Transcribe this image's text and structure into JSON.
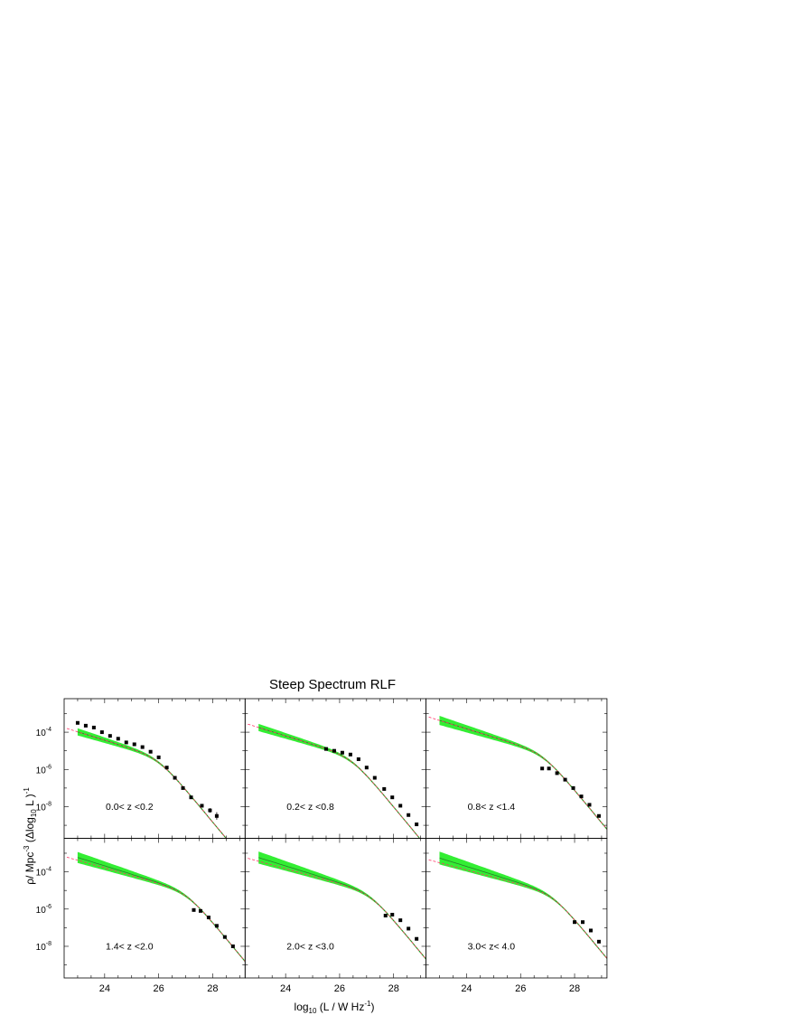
{
  "figure": {
    "title": "Steep Spectrum RLF",
    "xlabel_main": "log",
    "xlabel_sub": "10",
    "xlabel_rest": " (L / W Hz",
    "xlabel_sup": "-1",
    "xlabel_close": ")",
    "ylabel_a": "ρ/ Mpc",
    "ylabel_sup": "-3",
    "ylabel_b": " (Δlog",
    "ylabel_sub": "10",
    "ylabel_c": " L )",
    "ylabel_sup2": "-1"
  },
  "colors": {
    "band": "#33ee33",
    "model_line": "#2a7a2a",
    "dashed": "#ff3366",
    "points": "#000000"
  },
  "chart_data": {
    "type": "scatter",
    "layout": "2x3 grid, shared axes",
    "xlim": [
      22.5,
      29.2
    ],
    "ylim_log10": [
      -9.7,
      -2.2
    ],
    "y_scale": "log",
    "xticks": [
      24,
      26,
      28
    ],
    "yticks": [
      {
        "exp": -4,
        "label": "10",
        "sup": "-4"
      },
      {
        "exp": -6,
        "label": "10",
        "sup": "-6"
      },
      {
        "exp": -8,
        "label": "10",
        "sup": "-8"
      }
    ],
    "panels": [
      {
        "label": "0.0< z <0.2",
        "model": {
          "Lstar": 26.0,
          "lognorm": -5.33,
          "alpha": 0.45,
          "beta": 1.75,
          "bandwidth": 0.15
        },
        "dashed_offset": 0.0,
        "points": [
          [
            23.0,
            -3.5
          ],
          [
            23.3,
            -3.65
          ],
          [
            23.6,
            -3.75
          ],
          [
            23.9,
            -4.0
          ],
          [
            24.2,
            -4.2
          ],
          [
            24.5,
            -4.35
          ],
          [
            24.8,
            -4.55
          ],
          [
            25.1,
            -4.65
          ],
          [
            25.4,
            -4.8
          ],
          [
            25.7,
            -5.05
          ],
          [
            26.0,
            -5.35
          ],
          [
            26.3,
            -5.9
          ],
          [
            26.6,
            -6.45
          ],
          [
            26.9,
            -7.0
          ],
          [
            27.2,
            -7.5
          ],
          [
            27.6,
            -7.95
          ],
          [
            27.9,
            -8.2
          ],
          [
            28.15,
            -8.5
          ]
        ],
        "errors": [
          0,
          0,
          0,
          0,
          0,
          0,
          0,
          0,
          0,
          0,
          0,
          0,
          0,
          0,
          0,
          0.08,
          0.12,
          0.2
        ]
      },
      {
        "label": "0.2< z <0.8",
        "model": {
          "Lstar": 26.45,
          "lognorm": -5.3,
          "alpha": 0.45,
          "beta": 1.75,
          "bandwidth": 0.15
        },
        "dashed_offset": 0.0,
        "points": [
          [
            25.5,
            -4.9
          ],
          [
            25.8,
            -5.0
          ],
          [
            26.1,
            -5.1
          ],
          [
            26.4,
            -5.2
          ],
          [
            26.7,
            -5.45
          ],
          [
            27.0,
            -5.9
          ],
          [
            27.3,
            -6.45
          ],
          [
            27.65,
            -7.05
          ],
          [
            27.95,
            -7.5
          ],
          [
            28.25,
            -7.95
          ],
          [
            28.55,
            -8.45
          ],
          [
            28.85,
            -8.95
          ]
        ],
        "errors": []
      },
      {
        "label": "0.8< z <1.4",
        "model": {
          "Lstar": 26.85,
          "lognorm": -5.1,
          "alpha": 0.45,
          "beta": 1.75,
          "bandwidth": 0.2
        },
        "dashed_offset": 0.0,
        "points": [
          [
            26.8,
            -5.95
          ],
          [
            27.05,
            -5.95
          ],
          [
            27.35,
            -6.2
          ],
          [
            27.65,
            -6.55
          ],
          [
            27.95,
            -7.0
          ],
          [
            28.25,
            -7.45
          ],
          [
            28.55,
            -7.9
          ],
          [
            28.9,
            -8.5
          ]
        ],
        "errors": []
      },
      {
        "label": "1.4< z <2.0",
        "model": {
          "Lstar": 27.05,
          "lognorm": -5.05,
          "alpha": 0.45,
          "beta": 1.75,
          "bandwidth": 0.25
        },
        "dashed_offset": -0.15,
        "points": [
          [
            27.3,
            -6.05
          ],
          [
            27.55,
            -6.1
          ],
          [
            27.85,
            -6.45
          ],
          [
            28.15,
            -6.9
          ],
          [
            28.45,
            -7.5
          ],
          [
            28.75,
            -8.0
          ]
        ],
        "errors": []
      },
      {
        "label": "2.0< z <3.0",
        "model": {
          "Lstar": 27.15,
          "lognorm": -5.1,
          "alpha": 0.45,
          "beta": 1.75,
          "bandwidth": 0.28
        },
        "dashed_offset": -0.2,
        "points": [
          [
            27.7,
            -6.35
          ],
          [
            27.95,
            -6.3
          ],
          [
            28.25,
            -6.6
          ],
          [
            28.55,
            -7.05
          ],
          [
            28.85,
            -7.6
          ]
        ],
        "errors": []
      },
      {
        "label": "3.0< z< 4.0",
        "model": {
          "Lstar": 27.2,
          "lognorm": -5.15,
          "alpha": 0.45,
          "beta": 1.75,
          "bandwidth": 0.3
        },
        "dashed_offset": -0.25,
        "points": [
          [
            28.0,
            -6.7
          ],
          [
            28.3,
            -6.7
          ],
          [
            28.6,
            -7.15
          ],
          [
            28.9,
            -7.75
          ]
        ],
        "errors": []
      }
    ]
  }
}
